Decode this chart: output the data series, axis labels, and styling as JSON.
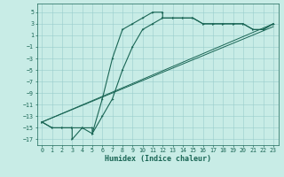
{
  "xlabel": "Humidex (Indice chaleur)",
  "bg_color": "#c8ece6",
  "grid_color": "#99cccc",
  "line_color": "#1a6655",
  "xlim": [
    -0.5,
    23.5
  ],
  "ylim": [
    -18,
    6.5
  ],
  "yticks": [
    5,
    3,
    1,
    -1,
    -3,
    -5,
    -7,
    -9,
    -11,
    -13,
    -15,
    -17
  ],
  "xticks": [
    0,
    1,
    2,
    3,
    4,
    5,
    6,
    7,
    8,
    9,
    10,
    11,
    12,
    13,
    14,
    15,
    16,
    17,
    18,
    19,
    20,
    21,
    22,
    23
  ],
  "curve1_x": [
    0,
    1,
    2,
    3,
    3,
    4,
    5,
    5,
    6,
    7,
    8,
    9,
    10,
    11,
    12,
    12,
    13,
    14,
    15,
    16,
    17,
    18,
    19,
    20,
    21,
    22,
    23
  ],
  "curve1_y": [
    -14,
    -15,
    -15,
    -15,
    -17,
    -15,
    -15,
    -16,
    -10,
    -3,
    2,
    3,
    4,
    5,
    5,
    4,
    4,
    4,
    4,
    3,
    3,
    3,
    3,
    3,
    2,
    2,
    3
  ],
  "curve2_x": [
    0,
    1,
    2,
    3,
    4,
    5,
    6,
    7,
    8,
    9,
    10,
    11,
    12,
    13,
    14,
    15,
    16,
    17,
    18,
    19,
    20,
    21,
    22,
    23
  ],
  "curve2_y": [
    -14,
    -15,
    -15,
    -15,
    -15,
    -16,
    -13,
    -10,
    -5,
    -1,
    2,
    3,
    4,
    4,
    4,
    4,
    3,
    3,
    3,
    3,
    3,
    2,
    2,
    3
  ],
  "line1_x": [
    0,
    23
  ],
  "line1_y": [
    -14,
    3
  ],
  "line2_x": [
    0,
    23
  ],
  "line2_y": [
    -14,
    2.5
  ],
  "ylabel_fontsize": 5,
  "xlabel_fontsize": 6,
  "tick_fontsize": 4.8
}
